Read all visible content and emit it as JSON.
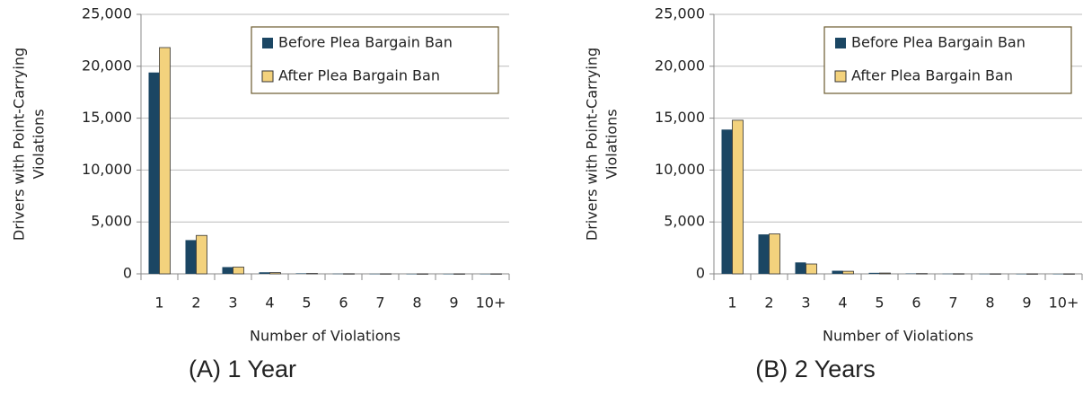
{
  "chart_data": [
    {
      "type": "bar",
      "caption": "(A) 1 Year",
      "ylabel": [
        "Drivers with Point-Carrying",
        "Violations"
      ],
      "xlabel": "Number of Violations",
      "categories": [
        "1",
        "2",
        "3",
        "4",
        "5",
        "6",
        "7",
        "8",
        "9",
        "10+"
      ],
      "series": [
        {
          "name": "Before Plea Bargain Ban",
          "color": "#1b4663",
          "values": [
            19400,
            3250,
            650,
            150,
            50,
            20,
            10,
            5,
            5,
            5
          ]
        },
        {
          "name": "After Plea Bargain Ban",
          "color": "#f3d27d",
          "values": [
            21800,
            3700,
            650,
            120,
            40,
            15,
            10,
            5,
            5,
            5
          ]
        }
      ],
      "ylim": [
        0,
        25000
      ],
      "yticks": [
        0,
        {
          "value": 5000,
          "label": "5,000"
        },
        {
          "value": 10000,
          "label": "10,000"
        },
        {
          "value": 15000,
          "label": "15,000"
        },
        {
          "value": 20000,
          "label": "20,000"
        },
        {
          "value": 25000,
          "label": "25,000"
        }
      ],
      "grid": true,
      "legend": "top-right"
    },
    {
      "type": "bar",
      "caption": "(B) 2 Years",
      "ylabel": [
        "Drivers with Point-Carrying",
        "Violations"
      ],
      "xlabel": "Number of Violations",
      "categories": [
        "1",
        "2",
        "3",
        "4",
        "5",
        "6",
        "7",
        "8",
        "9",
        "10+"
      ],
      "series": [
        {
          "name": "Before Plea Bargain Ban",
          "color": "#1b4663",
          "values": [
            13900,
            3800,
            1100,
            300,
            100,
            40,
            20,
            10,
            5,
            5
          ]
        },
        {
          "name": "After Plea Bargain Ban",
          "color": "#f3d27d",
          "values": [
            14800,
            3850,
            950,
            250,
            80,
            30,
            15,
            8,
            5,
            5
          ]
        }
      ],
      "ylim": [
        0,
        25000
      ],
      "yticks": [
        0,
        {
          "value": 5000,
          "label": "5,000"
        },
        {
          "value": 10000,
          "label": "10,000"
        },
        {
          "value": 15000,
          "label": "15,000"
        },
        {
          "value": 20000,
          "label": "20,000"
        },
        {
          "value": 25000,
          "label": "25,000"
        }
      ],
      "grid": true,
      "legend": "top-right"
    }
  ]
}
